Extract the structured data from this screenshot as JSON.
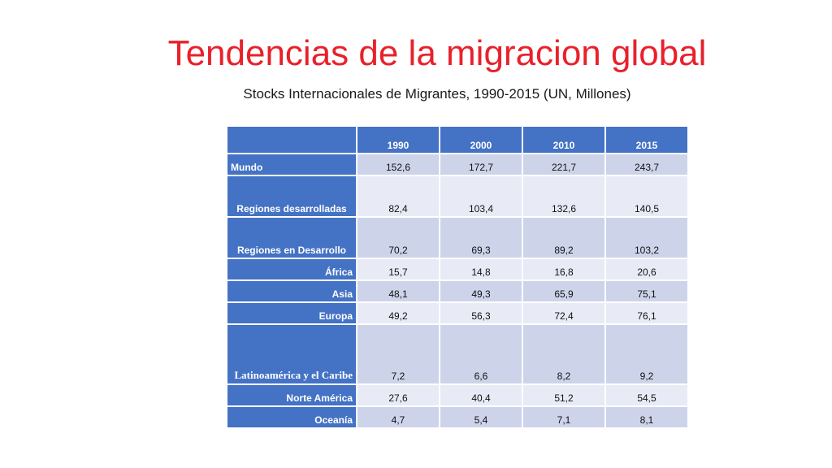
{
  "slide": {
    "title": "Tendencias de la migracion global",
    "subtitle": "Stocks Internacionales de Migrantes, 1990-2015 (UN, Millones)"
  },
  "table": {
    "headers": [
      "",
      "1990",
      "2000",
      "2010",
      "2015"
    ],
    "rows": [
      {
        "label": "Mundo",
        "values": [
          "152,6",
          "172,7",
          "221,7",
          "243,7"
        ]
      },
      {
        "label": "Regiones desarrolladas",
        "values": [
          "82,4",
          "103,4",
          "132,6",
          "140,5"
        ]
      },
      {
        "label": "Regiones en Desarrollo",
        "values": [
          "70,2",
          "69,3",
          "89,2",
          "103,2"
        ]
      },
      {
        "label": "África",
        "values": [
          "15,7",
          "14,8",
          "16,8",
          "20,6"
        ]
      },
      {
        "label": "Asia",
        "values": [
          "48,1",
          "49,3",
          "65,9",
          "75,1"
        ]
      },
      {
        "label": "Europa",
        "values": [
          "49,2",
          "56,3",
          "72,4",
          "76,1"
        ]
      },
      {
        "label": "Latinoamérica y el Caribe",
        "values": [
          "7,2",
          "6,6",
          "8,2",
          "9,2"
        ]
      },
      {
        "label": "Norte América",
        "values": [
          "27,6",
          "40,4",
          "51,2",
          "54,5"
        ]
      },
      {
        "label": "Oceanía",
        "values": [
          "4,7",
          "5,4",
          "7,1",
          "8,1"
        ]
      }
    ]
  },
  "colors": {
    "title": "#e8212b",
    "header_fill": "#4472c4",
    "cell_fill_dark": "#cdd4ea",
    "cell_fill_light": "#e8ebf5"
  }
}
